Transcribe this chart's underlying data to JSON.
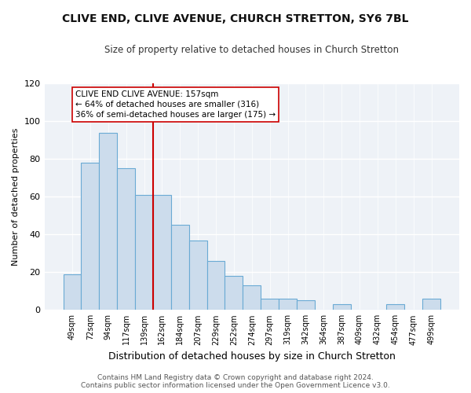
{
  "title": "CLIVE END, CLIVE AVENUE, CHURCH STRETTON, SY6 7BL",
  "subtitle": "Size of property relative to detached houses in Church Stretton",
  "xlabel": "Distribution of detached houses by size in Church Stretton",
  "ylabel": "Number of detached properties",
  "bar_labels": [
    "49sqm",
    "72sqm",
    "94sqm",
    "117sqm",
    "139sqm",
    "162sqm",
    "184sqm",
    "207sqm",
    "229sqm",
    "252sqm",
    "274sqm",
    "297sqm",
    "319sqm",
    "342sqm",
    "364sqm",
    "387sqm",
    "409sqm",
    "432sqm",
    "454sqm",
    "477sqm",
    "499sqm"
  ],
  "bar_values": [
    19,
    78,
    94,
    75,
    61,
    61,
    45,
    37,
    26,
    18,
    13,
    6,
    6,
    5,
    0,
    3,
    0,
    0,
    3,
    0,
    6
  ],
  "bar_color": "#ccdcec",
  "bar_edge_color": "#6aaad4",
  "vline_x_index": 5,
  "vline_color": "#cc0000",
  "annotation_text": "CLIVE END CLIVE AVENUE: 157sqm\n← 64% of detached houses are smaller (316)\n36% of semi-detached houses are larger (175) →",
  "annotation_box_color": "#ffffff",
  "annotation_box_edge": "#cc0000",
  "ylim": [
    0,
    120
  ],
  "yticks": [
    0,
    20,
    40,
    60,
    80,
    100,
    120
  ],
  "footer_text": "Contains HM Land Registry data © Crown copyright and database right 2024.\nContains public sector information licensed under the Open Government Licence v3.0.",
  "bg_color": "#ffffff",
  "plot_bg_color": "#eef2f7",
  "grid_color": "#ffffff",
  "title_fontsize": 10,
  "subtitle_fontsize": 8.5,
  "tick_fontsize": 7,
  "ylabel_fontsize": 8,
  "xlabel_fontsize": 9,
  "footer_fontsize": 6.5
}
